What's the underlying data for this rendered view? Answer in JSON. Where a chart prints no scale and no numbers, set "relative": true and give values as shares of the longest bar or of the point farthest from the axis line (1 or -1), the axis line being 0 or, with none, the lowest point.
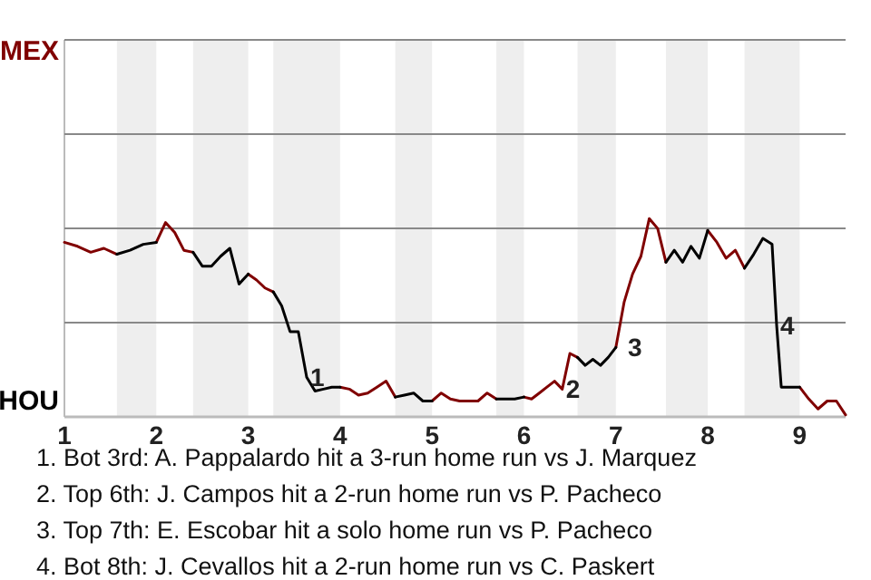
{
  "chart_data": {
    "type": "line",
    "x": [
      1,
      1.143,
      1.286,
      1.429,
      1.571,
      1.714,
      1.857,
      2,
      2.1,
      2.2,
      2.3,
      2.4,
      2.5,
      2.6,
      2.7,
      2.8,
      2.9,
      3,
      3.091,
      3.182,
      3.273,
      3.364,
      3.455,
      3.545,
      3.636,
      3.727,
      3.818,
      3.909,
      4,
      4.1,
      4.2,
      4.3,
      4.4,
      4.5,
      4.6,
      4.7,
      4.8,
      4.9,
      5,
      5.1,
      5.2,
      5.3,
      5.4,
      5.5,
      5.6,
      5.7,
      5.8,
      5.9,
      6,
      6.083,
      6.167,
      6.25,
      6.333,
      6.417,
      6.5,
      6.583,
      6.667,
      6.75,
      6.833,
      6.917,
      7,
      7.091,
      7.182,
      7.273,
      7.364,
      7.455,
      7.545,
      7.636,
      7.727,
      7.818,
      7.909,
      8,
      8.1,
      8.2,
      8.3,
      8.4,
      8.5,
      8.6,
      8.7,
      8.75,
      8.8,
      8.9,
      9,
      9.1,
      9.2,
      9.3,
      9.4,
      9.5
    ],
    "series": [
      {
        "color": "#800000",
        "values": [
          0.88,
          0.86,
          0.83,
          0.85,
          0.82,
          null,
          null,
          0.88,
          0.98,
          0.93,
          0.84,
          0.83,
          null,
          null,
          null,
          null,
          null,
          0.72,
          0.69,
          0.65,
          0.63,
          null,
          null,
          null,
          null,
          null,
          null,
          null,
          0.15,
          0.14,
          0.11,
          0.12,
          0.15,
          0.18,
          0.1,
          null,
          null,
          null,
          0.08,
          0.12,
          0.09,
          0.08,
          0.08,
          0.08,
          0.12,
          0.09,
          null,
          null,
          0.1,
          0.09,
          0.12,
          0.15,
          0.18,
          0.14,
          0.32,
          0.3,
          null,
          null,
          null,
          null,
          0.35,
          0.58,
          0.72,
          0.81,
          1,
          0.95,
          0.78,
          null,
          null,
          null,
          null,
          0.94,
          0.88,
          0.8,
          0.84,
          0.75,
          null,
          null,
          null,
          null,
          null,
          null,
          0.15,
          0.09,
          0.04,
          0.08,
          0.08,
          0.01
        ]
      },
      {
        "color": "#000000",
        "values": [
          null,
          null,
          null,
          null,
          0.82,
          0.84,
          0.87,
          0.88,
          null,
          null,
          null,
          0.83,
          0.76,
          0.76,
          0.81,
          0.85,
          0.67,
          0.72,
          null,
          null,
          0.63,
          0.56,
          0.43,
          0.43,
          0.2,
          0.13,
          0.14,
          0.15,
          0.15,
          null,
          null,
          null,
          null,
          null,
          0.1,
          0.11,
          0.12,
          0.08,
          0.08,
          null,
          null,
          null,
          null,
          null,
          null,
          0.09,
          0.09,
          0.09,
          0.1,
          null,
          null,
          null,
          null,
          null,
          null,
          0.3,
          0.26,
          0.29,
          0.26,
          0.3,
          0.35,
          null,
          null,
          null,
          null,
          null,
          0.78,
          0.84,
          0.78,
          0.86,
          0.8,
          0.94,
          null,
          null,
          null,
          0.75,
          0.82,
          0.9,
          0.87,
          0.46,
          0.15,
          0.15,
          0.15,
          null,
          null,
          null,
          null,
          null
        ]
      }
    ],
    "relative": true,
    "xlim": [
      1,
      9.5
    ],
    "xticks": [
      1,
      2,
      3,
      4,
      5,
      6,
      7,
      8,
      9
    ],
    "ref_lines": [
      {
        "axis": "y",
        "value": 0.475,
        "color": "#888888"
      },
      {
        "axis": "y",
        "value": 0.951,
        "color": "#888888"
      },
      {
        "axis": "y",
        "value": 1.426,
        "color": "#888888"
      },
      {
        "axis": "y",
        "value": 1.901,
        "color": "#888888"
      }
    ],
    "bands": [
      {
        "axis": "x",
        "from": 1.571,
        "to": 2,
        "color": "#eeeeee"
      },
      {
        "axis": "x",
        "from": 2.4,
        "to": 3,
        "color": "#eeeeee"
      },
      {
        "axis": "x",
        "from": 3.273,
        "to": 4,
        "color": "#eeeeee"
      },
      {
        "axis": "x",
        "from": 4.6,
        "to": 5,
        "color": "#eeeeee"
      },
      {
        "axis": "x",
        "from": 5.7,
        "to": 6,
        "color": "#eeeeee"
      },
      {
        "axis": "x",
        "from": 6.583,
        "to": 7,
        "color": "#eeeeee"
      },
      {
        "axis": "x",
        "from": 7.545,
        "to": 8,
        "color": "#eeeeee"
      },
      {
        "axis": "x",
        "from": 8.4,
        "to": 9,
        "color": "#eeeeee"
      }
    ],
    "annotations": [
      "MEX",
      "HOU",
      {
        "text": "1",
        "x": 3.636,
        "y": 0.2
      },
      {
        "text": "2",
        "x": 6.417,
        "y": 0.14
      },
      {
        "text": "3",
        "x": 7.091,
        "y": 0.35
      },
      {
        "text": "4",
        "x": 8.75,
        "y": 0.46
      },
      "1. Bot 3rd: A. Pappalardo hit a 3-run home run vs J. Marquez",
      "2. Top 6th: J. Campos hit a 2-run home run vs P. Pacheco",
      "3. Top 7th: E. Escobar hit a solo home run vs P. Pacheco",
      "4. Bot 8th: J. Cevallos hit a 2-run home run vs C. Paskert"
    ],
    "marker": "none",
    "line_style": "solid"
  }
}
